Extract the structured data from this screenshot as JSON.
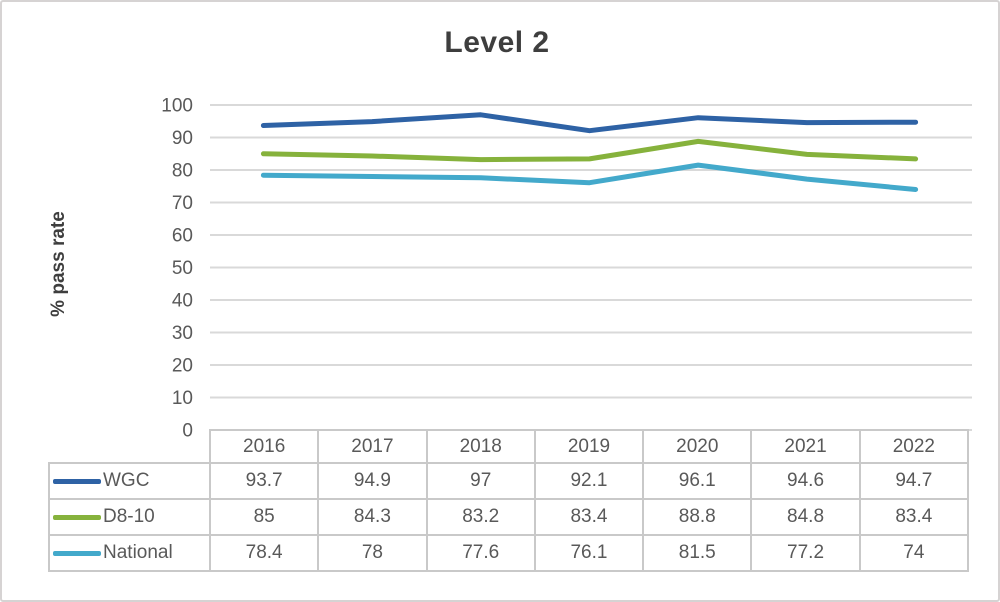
{
  "chart_data": {
    "type": "line",
    "title": "Level 2",
    "xlabel": "",
    "ylabel": "% pass rate",
    "ylim": [
      0,
      100
    ],
    "ytick_step": 10,
    "grid": true,
    "legend_position": "table-left",
    "categories": [
      "2016",
      "2017",
      "2018",
      "2019",
      "2020",
      "2021",
      "2022"
    ],
    "series": [
      {
        "name": "WGC",
        "color": "#2e62a5",
        "values": [
          93.7,
          94.9,
          97,
          92.1,
          96.1,
          94.6,
          94.7
        ]
      },
      {
        "name": "D8-10",
        "color": "#86b23c",
        "values": [
          85,
          84.3,
          83.2,
          83.4,
          88.8,
          84.8,
          83.4
        ]
      },
      {
        "name": "National",
        "color": "#43a9cb",
        "values": [
          78.4,
          78,
          77.6,
          76.1,
          81.5,
          77.2,
          74
        ]
      }
    ]
  },
  "colors": {
    "gridline": "#d9d9d9",
    "tick_text": "#595959",
    "table_border": "#c9c9c9",
    "title_text": "#3e3e3e",
    "figure_border": "#d6d3d3"
  }
}
